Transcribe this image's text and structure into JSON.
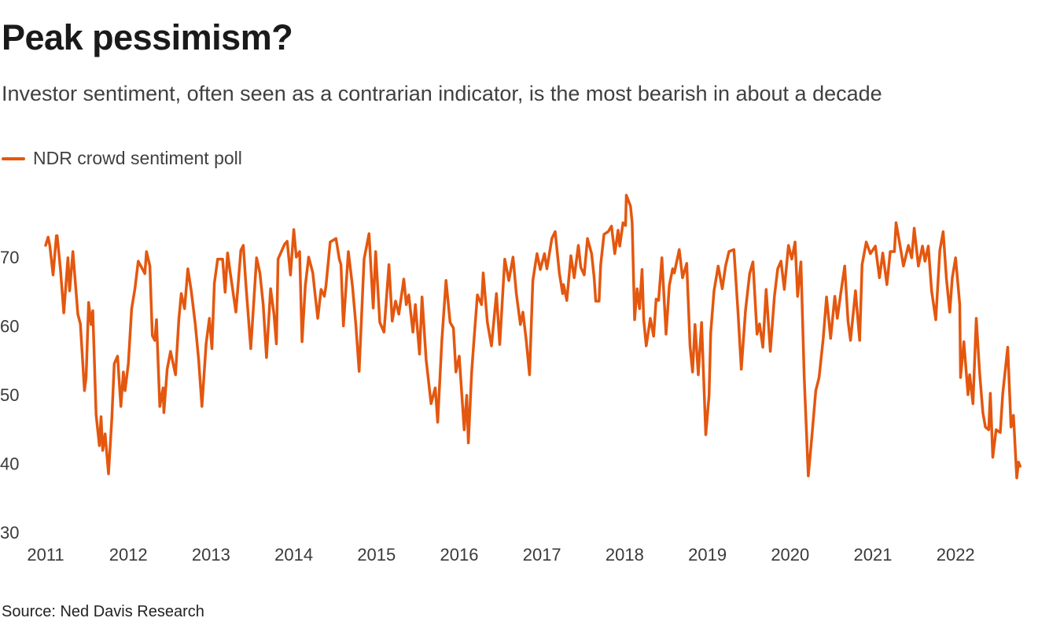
{
  "title": "Peak pessimism?",
  "subtitle": "Investor sentiment, often seen as a contrarian indicator, is the most bearish in about a decade",
  "source": "Source: Ned Davis Research",
  "colors": {
    "line": "#e4570f"
  },
  "chart_data": {
    "type": "line",
    "title": "Peak pessimism?",
    "xlabel": "",
    "ylabel": "",
    "xlim": [
      2011,
      2022.8
    ],
    "ylim": [
      30,
      80
    ],
    "x_ticks": [
      "2011",
      "2012",
      "2013",
      "2014",
      "2015",
      "2016",
      "2017",
      "2018",
      "2019",
      "2020",
      "2021",
      "2022"
    ],
    "y_ticks": [
      "30",
      "40",
      "50",
      "60",
      "70"
    ],
    "grid": false,
    "legend": "top-left",
    "series": [
      {
        "name": "NDR crowd sentiment poll",
        "color": "#e4570f",
        "points": [
          [
            2011.0,
            71.7
          ],
          [
            2011.03,
            72.9
          ],
          [
            2011.05,
            71.7
          ],
          [
            2011.09,
            67.4
          ],
          [
            2011.13,
            73.1
          ],
          [
            2011.14,
            73.1
          ],
          [
            2011.18,
            68.2
          ],
          [
            2011.22,
            61.9
          ],
          [
            2011.27,
            69.9
          ],
          [
            2011.29,
            65.1
          ],
          [
            2011.33,
            70.8
          ],
          [
            2011.39,
            61.7
          ],
          [
            2011.42,
            60.3
          ],
          [
            2011.47,
            50.6
          ],
          [
            2011.49,
            52.5
          ],
          [
            2011.52,
            63.4
          ],
          [
            2011.55,
            60.2
          ],
          [
            2011.57,
            62.2
          ],
          [
            2011.61,
            47.1
          ],
          [
            2011.65,
            42.6
          ],
          [
            2011.67,
            46.8
          ],
          [
            2011.69,
            41.9
          ],
          [
            2011.72,
            44.3
          ],
          [
            2011.76,
            38.5
          ],
          [
            2011.8,
            46.5
          ],
          [
            2011.83,
            54.5
          ],
          [
            2011.87,
            55.6
          ],
          [
            2011.91,
            48.3
          ],
          [
            2011.94,
            53.3
          ],
          [
            2011.96,
            50.6
          ],
          [
            2012.0,
            54.5
          ],
          [
            2012.04,
            62.5
          ],
          [
            2012.08,
            65.4
          ],
          [
            2012.12,
            69.4
          ],
          [
            2012.16,
            68.5
          ],
          [
            2012.2,
            67.6
          ],
          [
            2012.22,
            70.8
          ],
          [
            2012.26,
            68.7
          ],
          [
            2012.29,
            58.6
          ],
          [
            2012.32,
            57.9
          ],
          [
            2012.34,
            60.9
          ],
          [
            2012.38,
            48.3
          ],
          [
            2012.42,
            51.0
          ],
          [
            2012.43,
            47.4
          ],
          [
            2012.47,
            53.7
          ],
          [
            2012.51,
            56.3
          ],
          [
            2012.57,
            52.9
          ],
          [
            2012.61,
            60.9
          ],
          [
            2012.64,
            64.7
          ],
          [
            2012.68,
            62.5
          ],
          [
            2012.72,
            68.3
          ],
          [
            2012.76,
            65.1
          ],
          [
            2012.81,
            60.2
          ],
          [
            2012.85,
            55.1
          ],
          [
            2012.89,
            48.3
          ],
          [
            2012.94,
            57.4
          ],
          [
            2012.98,
            61.1
          ],
          [
            2013.01,
            56.7
          ],
          [
            2013.04,
            66.2
          ],
          [
            2013.08,
            69.7
          ],
          [
            2013.14,
            69.7
          ],
          [
            2013.17,
            64.9
          ],
          [
            2013.2,
            70.6
          ],
          [
            2013.23,
            67.9
          ],
          [
            2013.3,
            62.0
          ],
          [
            2013.36,
            71.0
          ],
          [
            2013.39,
            71.7
          ],
          [
            2013.42,
            66.2
          ],
          [
            2013.48,
            56.7
          ],
          [
            2013.55,
            69.9
          ],
          [
            2013.59,
            67.7
          ],
          [
            2013.63,
            63.1
          ],
          [
            2013.67,
            55.4
          ],
          [
            2013.72,
            65.4
          ],
          [
            2013.76,
            61.7
          ],
          [
            2013.79,
            57.4
          ],
          [
            2013.81,
            69.7
          ],
          [
            2013.85,
            70.8
          ],
          [
            2013.89,
            71.9
          ],
          [
            2013.92,
            72.3
          ],
          [
            2013.96,
            67.4
          ],
          [
            2014.0,
            74.0
          ],
          [
            2014.03,
            70.0
          ],
          [
            2014.07,
            70.8
          ],
          [
            2014.1,
            57.7
          ],
          [
            2014.14,
            65.9
          ],
          [
            2014.18,
            70.0
          ],
          [
            2014.23,
            67.7
          ],
          [
            2014.25,
            65.4
          ],
          [
            2014.29,
            61.1
          ],
          [
            2014.33,
            65.3
          ],
          [
            2014.37,
            64.3
          ],
          [
            2014.39,
            65.9
          ],
          [
            2014.44,
            72.2
          ],
          [
            2014.51,
            72.7
          ],
          [
            2014.55,
            69.7
          ],
          [
            2014.57,
            68.9
          ],
          [
            2014.6,
            60.0
          ],
          [
            2014.66,
            70.8
          ],
          [
            2014.71,
            65.7
          ],
          [
            2014.75,
            60.2
          ],
          [
            2014.79,
            53.4
          ],
          [
            2014.85,
            69.7
          ],
          [
            2014.91,
            73.4
          ],
          [
            2014.96,
            62.6
          ],
          [
            2014.99,
            70.8
          ],
          [
            2015.04,
            60.5
          ],
          [
            2015.09,
            59.1
          ],
          [
            2015.15,
            68.9
          ],
          [
            2015.19,
            60.7
          ],
          [
            2015.23,
            63.6
          ],
          [
            2015.27,
            61.7
          ],
          [
            2015.33,
            66.8
          ],
          [
            2015.36,
            63.1
          ],
          [
            2015.39,
            64.5
          ],
          [
            2015.44,
            59.1
          ],
          [
            2015.47,
            63.1
          ],
          [
            2015.52,
            55.9
          ],
          [
            2015.55,
            64.2
          ],
          [
            2015.6,
            55.1
          ],
          [
            2015.66,
            48.7
          ],
          [
            2015.71,
            51.0
          ],
          [
            2015.74,
            46.0
          ],
          [
            2015.79,
            57.9
          ],
          [
            2015.84,
            66.6
          ],
          [
            2015.89,
            60.5
          ],
          [
            2015.93,
            59.7
          ],
          [
            2015.96,
            53.3
          ],
          [
            2016.0,
            55.6
          ],
          [
            2016.06,
            44.9
          ],
          [
            2016.09,
            49.9
          ],
          [
            2016.11,
            43.0
          ],
          [
            2016.15,
            53.3
          ],
          [
            2016.18,
            58.2
          ],
          [
            2016.22,
            64.5
          ],
          [
            2016.27,
            63.1
          ],
          [
            2016.29,
            67.7
          ],
          [
            2016.34,
            60.5
          ],
          [
            2016.39,
            57.1
          ],
          [
            2016.45,
            64.7
          ],
          [
            2016.49,
            57.3
          ],
          [
            2016.55,
            69.7
          ],
          [
            2016.6,
            66.6
          ],
          [
            2016.65,
            70.0
          ],
          [
            2016.69,
            64.7
          ],
          [
            2016.74,
            60.2
          ],
          [
            2016.77,
            62.0
          ],
          [
            2016.81,
            57.9
          ],
          [
            2016.85,
            52.9
          ],
          [
            2016.89,
            66.6
          ],
          [
            2016.94,
            70.5
          ],
          [
            2016.98,
            68.2
          ],
          [
            2017.03,
            70.5
          ],
          [
            2017.06,
            68.3
          ],
          [
            2017.12,
            72.7
          ],
          [
            2017.16,
            73.7
          ],
          [
            2017.21,
            67.7
          ],
          [
            2017.25,
            64.7
          ],
          [
            2017.26,
            66.0
          ],
          [
            2017.3,
            63.7
          ],
          [
            2017.35,
            70.2
          ],
          [
            2017.39,
            67.0
          ],
          [
            2017.44,
            71.7
          ],
          [
            2017.47,
            68.5
          ],
          [
            2017.51,
            67.4
          ],
          [
            2017.55,
            72.7
          ],
          [
            2017.6,
            70.5
          ],
          [
            2017.63,
            67.1
          ],
          [
            2017.65,
            63.6
          ],
          [
            2017.69,
            63.6
          ],
          [
            2017.71,
            68.9
          ],
          [
            2017.75,
            73.3
          ],
          [
            2017.8,
            73.7
          ],
          [
            2017.84,
            74.5
          ],
          [
            2017.88,
            70.5
          ],
          [
            2017.92,
            73.9
          ],
          [
            2017.94,
            71.6
          ],
          [
            2017.98,
            75.0
          ],
          [
            2018.01,
            74.6
          ],
          [
            2018.02,
            79.0
          ],
          [
            2018.07,
            77.4
          ],
          [
            2018.09,
            75.0
          ],
          [
            2018.12,
            60.9
          ],
          [
            2018.15,
            65.4
          ],
          [
            2018.18,
            62.5
          ],
          [
            2018.21,
            68.2
          ],
          [
            2018.23,
            60.9
          ],
          [
            2018.26,
            57.1
          ],
          [
            2018.31,
            61.1
          ],
          [
            2018.35,
            58.5
          ],
          [
            2018.38,
            63.9
          ],
          [
            2018.41,
            63.7
          ],
          [
            2018.45,
            69.9
          ],
          [
            2018.5,
            58.8
          ],
          [
            2018.54,
            65.9
          ],
          [
            2018.58,
            68.3
          ],
          [
            2018.6,
            67.7
          ],
          [
            2018.66,
            71.1
          ],
          [
            2018.7,
            67.0
          ],
          [
            2018.75,
            69.1
          ],
          [
            2018.79,
            57.1
          ],
          [
            2018.82,
            53.3
          ],
          [
            2018.85,
            60.2
          ],
          [
            2018.89,
            52.9
          ],
          [
            2018.93,
            60.5
          ],
          [
            2018.98,
            44.2
          ],
          [
            2019.02,
            49.9
          ],
          [
            2019.04,
            59.0
          ],
          [
            2019.08,
            65.1
          ],
          [
            2019.13,
            68.7
          ],
          [
            2019.18,
            65.4
          ],
          [
            2019.22,
            68.7
          ],
          [
            2019.26,
            70.8
          ],
          [
            2019.32,
            71.1
          ],
          [
            2019.37,
            62.0
          ],
          [
            2019.41,
            53.7
          ],
          [
            2019.46,
            62.2
          ],
          [
            2019.51,
            67.6
          ],
          [
            2019.55,
            69.3
          ],
          [
            2019.6,
            58.8
          ],
          [
            2019.63,
            60.3
          ],
          [
            2019.67,
            56.9
          ],
          [
            2019.71,
            65.3
          ],
          [
            2019.76,
            56.3
          ],
          [
            2019.81,
            64.3
          ],
          [
            2019.85,
            68.3
          ],
          [
            2019.89,
            69.4
          ],
          [
            2019.93,
            65.3
          ],
          [
            2019.98,
            71.7
          ],
          [
            2020.02,
            69.7
          ],
          [
            2020.06,
            72.2
          ],
          [
            2020.09,
            64.3
          ],
          [
            2020.13,
            69.3
          ],
          [
            2020.17,
            52.5
          ],
          [
            2020.22,
            38.2
          ],
          [
            2020.26,
            43.6
          ],
          [
            2020.31,
            50.6
          ],
          [
            2020.35,
            52.5
          ],
          [
            2020.4,
            58.2
          ],
          [
            2020.44,
            64.2
          ],
          [
            2020.49,
            58.2
          ],
          [
            2020.54,
            64.3
          ],
          [
            2020.57,
            61.1
          ],
          [
            2020.62,
            65.4
          ],
          [
            2020.66,
            68.7
          ],
          [
            2020.7,
            60.7
          ],
          [
            2020.73,
            57.9
          ],
          [
            2020.79,
            65.1
          ],
          [
            2020.84,
            57.9
          ],
          [
            2020.87,
            68.9
          ],
          [
            2020.92,
            72.2
          ],
          [
            2020.97,
            70.5
          ],
          [
            2021.03,
            71.6
          ],
          [
            2021.08,
            67.0
          ],
          [
            2021.12,
            70.6
          ],
          [
            2021.17,
            66.0
          ],
          [
            2021.21,
            70.8
          ],
          [
            2021.26,
            70.8
          ],
          [
            2021.28,
            75.0
          ],
          [
            2021.33,
            71.6
          ],
          [
            2021.37,
            68.7
          ],
          [
            2021.43,
            71.7
          ],
          [
            2021.47,
            69.9
          ],
          [
            2021.5,
            74.2
          ],
          [
            2021.55,
            68.7
          ],
          [
            2021.6,
            71.6
          ],
          [
            2021.63,
            69.4
          ],
          [
            2021.67,
            71.6
          ],
          [
            2021.71,
            65.1
          ],
          [
            2021.76,
            60.9
          ],
          [
            2021.81,
            71.0
          ],
          [
            2021.85,
            73.7
          ],
          [
            2021.89,
            66.8
          ],
          [
            2021.93,
            62.0
          ],
          [
            2021.96,
            67.0
          ],
          [
            2022.0,
            69.9
          ],
          [
            2022.05,
            63.1
          ],
          [
            2022.06,
            52.5
          ],
          [
            2022.1,
            57.7
          ],
          [
            2022.15,
            50.0
          ],
          [
            2022.17,
            52.9
          ],
          [
            2022.21,
            48.7
          ],
          [
            2022.25,
            61.1
          ],
          [
            2022.29,
            53.3
          ],
          [
            2022.33,
            47.4
          ],
          [
            2022.36,
            45.3
          ],
          [
            2022.4,
            44.9
          ],
          [
            2022.42,
            50.2
          ],
          [
            2022.45,
            40.9
          ],
          [
            2022.49,
            44.9
          ],
          [
            2022.54,
            44.5
          ],
          [
            2022.57,
            50.2
          ],
          [
            2022.63,
            56.9
          ],
          [
            2022.67,
            45.3
          ],
          [
            2022.7,
            47.0
          ],
          [
            2022.74,
            37.9
          ],
          [
            2022.76,
            40.2
          ],
          [
            2022.78,
            39.6
          ]
        ]
      }
    ]
  }
}
